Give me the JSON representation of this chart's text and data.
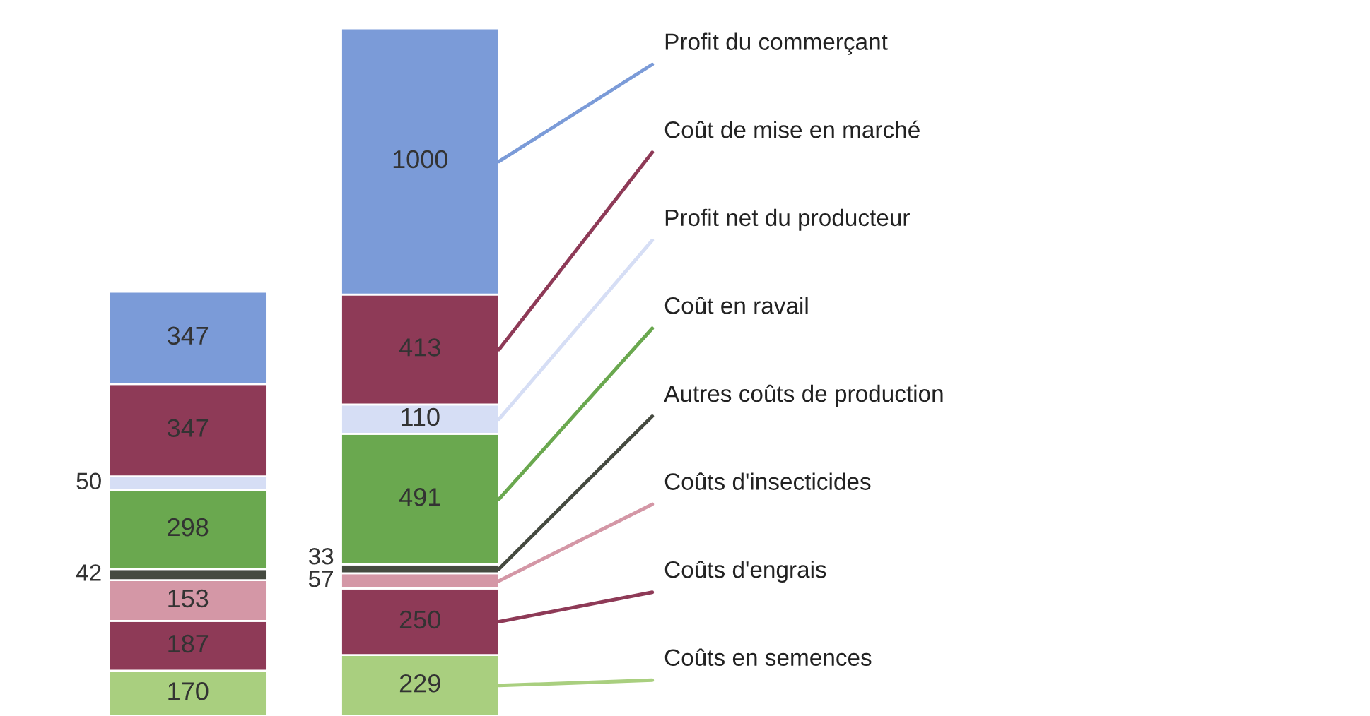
{
  "chart_data": {
    "type": "bar",
    "stacked": true,
    "data_labels": true,
    "legend": "right",
    "categories": [
      null,
      null
    ],
    "series": [
      {
        "name": "Coûts en semences",
        "color": "#a9cf7f",
        "values": [
          170,
          229
        ]
      },
      {
        "name": "Coûts d'engrais",
        "color": "#8e3a57",
        "values": [
          187,
          250
        ]
      },
      {
        "name": "Coûts d'insecticides",
        "color": "#d497a6",
        "values": [
          153,
          57
        ]
      },
      {
        "name": "Autres coûts de production",
        "color": "#454a40",
        "values": [
          42,
          33
        ]
      },
      {
        "name": "Coût en ravail",
        "color": "#6aa84f",
        "values": [
          298,
          491
        ]
      },
      {
        "name": "Profit net du producteur",
        "color": "#d6def5",
        "values": [
          50,
          110
        ]
      },
      {
        "name": "Coût de mise en marché",
        "color": "#8e3a57",
        "values": [
          347,
          413
        ]
      },
      {
        "name": "Profit du commerçant",
        "color": "#7b9bd8",
        "values": [
          347,
          1000
        ]
      }
    ]
  }
}
